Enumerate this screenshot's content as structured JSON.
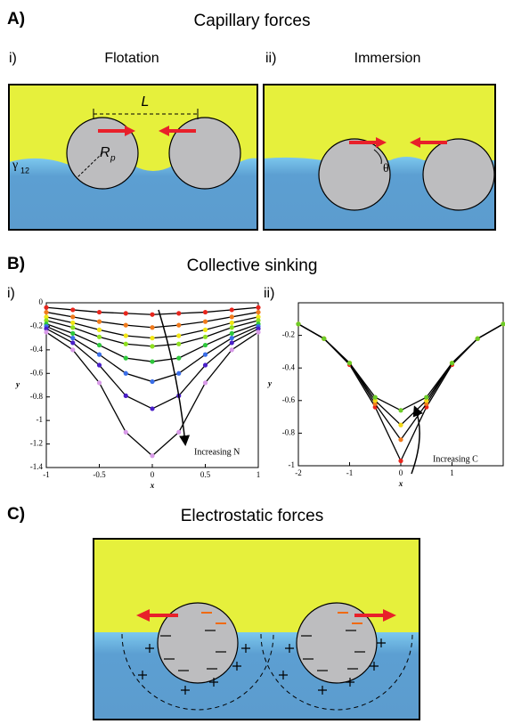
{
  "panel_a": {
    "label": "A)",
    "title": "Capillary forces",
    "sub_i": "i)",
    "sub_i_title": "Flotation",
    "sub_ii": "ii)",
    "sub_ii_title": "Immersion",
    "length_label": "L",
    "radius_label": "R",
    "radius_subscript": "p",
    "tension_label": "γ",
    "tension_subscript": "12",
    "angle_label": "θ"
  },
  "panel_b": {
    "label": "B)",
    "title": "Collective sinking",
    "sub_i": "i)",
    "sub_ii": "ii)"
  },
  "panel_c": {
    "label": "C)",
    "title": "Electrostatic forces"
  },
  "chart_data": [
    {
      "type": "line",
      "xlabel": "x",
      "ylabel": "y",
      "annotation": "Increasing N",
      "x": [
        -1,
        -0.75,
        -0.5,
        -0.25,
        0,
        0.25,
        0.5,
        0.75,
        1
      ],
      "xlim": [
        -1,
        1
      ],
      "xticks": [
        -1,
        -0.5,
        0,
        0.5,
        1
      ],
      "ylim": [
        -1.4,
        0
      ],
      "yticks": [
        0,
        -0.2,
        -0.4,
        -0.6,
        -0.8,
        -1,
        -1.2,
        -1.4
      ],
      "line_color": "#000000",
      "series": [
        {
          "color": "#e8251c",
          "values": [
            -0.04,
            -0.06,
            -0.08,
            -0.09,
            -0.1,
            -0.09,
            -0.08,
            -0.06,
            -0.04
          ]
        },
        {
          "color": "#f07a1c",
          "values": [
            -0.08,
            -0.12,
            -0.16,
            -0.19,
            -0.21,
            -0.19,
            -0.16,
            -0.12,
            -0.08
          ]
        },
        {
          "color": "#f2e614",
          "values": [
            -0.12,
            -0.17,
            -0.23,
            -0.28,
            -0.3,
            -0.28,
            -0.23,
            -0.17,
            -0.12
          ]
        },
        {
          "color": "#8ee020",
          "values": [
            -0.15,
            -0.21,
            -0.29,
            -0.35,
            -0.37,
            -0.35,
            -0.29,
            -0.21,
            -0.15
          ]
        },
        {
          "color": "#2ec83c",
          "values": [
            -0.18,
            -0.26,
            -0.36,
            -0.47,
            -0.5,
            -0.47,
            -0.36,
            -0.26,
            -0.18
          ]
        },
        {
          "color": "#3a6ee8",
          "values": [
            -0.2,
            -0.3,
            -0.44,
            -0.6,
            -0.67,
            -0.6,
            -0.44,
            -0.3,
            -0.2
          ]
        },
        {
          "color": "#4a1fc8",
          "values": [
            -0.22,
            -0.34,
            -0.53,
            -0.79,
            -0.9,
            -0.79,
            -0.53,
            -0.34,
            -0.22
          ]
        },
        {
          "color": "#d89ae8",
          "values": [
            -0.25,
            -0.4,
            -0.68,
            -1.1,
            -1.3,
            -1.1,
            -0.68,
            -0.4,
            -0.25
          ]
        }
      ]
    },
    {
      "type": "line",
      "xlabel": "x",
      "ylabel": "y",
      "annotation": "Increasing C",
      "x": [
        -2,
        -1.5,
        -1,
        -0.5,
        0,
        0.5,
        1,
        1.5,
        2
      ],
      "xlim": [
        -2,
        2
      ],
      "xticks": [
        -2,
        -1,
        0,
        1
      ],
      "ylim": [
        -1,
        0
      ],
      "yticks": [
        -0.2,
        -0.4,
        -0.6,
        -0.8,
        -1
      ],
      "line_color": "#000000",
      "series": [
        {
          "color": "#e8251c",
          "values": [
            -0.13,
            -0.22,
            -0.38,
            -0.64,
            -0.97,
            -0.64,
            -0.38,
            -0.22,
            -0.13
          ]
        },
        {
          "color": "#f07a1c",
          "values": [
            -0.13,
            -0.22,
            -0.37,
            -0.62,
            -0.84,
            -0.62,
            -0.37,
            -0.22,
            -0.13
          ]
        },
        {
          "color": "#f2d814",
          "values": [
            -0.13,
            -0.22,
            -0.37,
            -0.6,
            -0.75,
            -0.6,
            -0.37,
            -0.22,
            -0.13
          ]
        },
        {
          "color": "#6ccc28",
          "values": [
            -0.13,
            -0.22,
            -0.37,
            -0.58,
            -0.66,
            -0.58,
            -0.37,
            -0.22,
            -0.13
          ]
        }
      ]
    }
  ]
}
